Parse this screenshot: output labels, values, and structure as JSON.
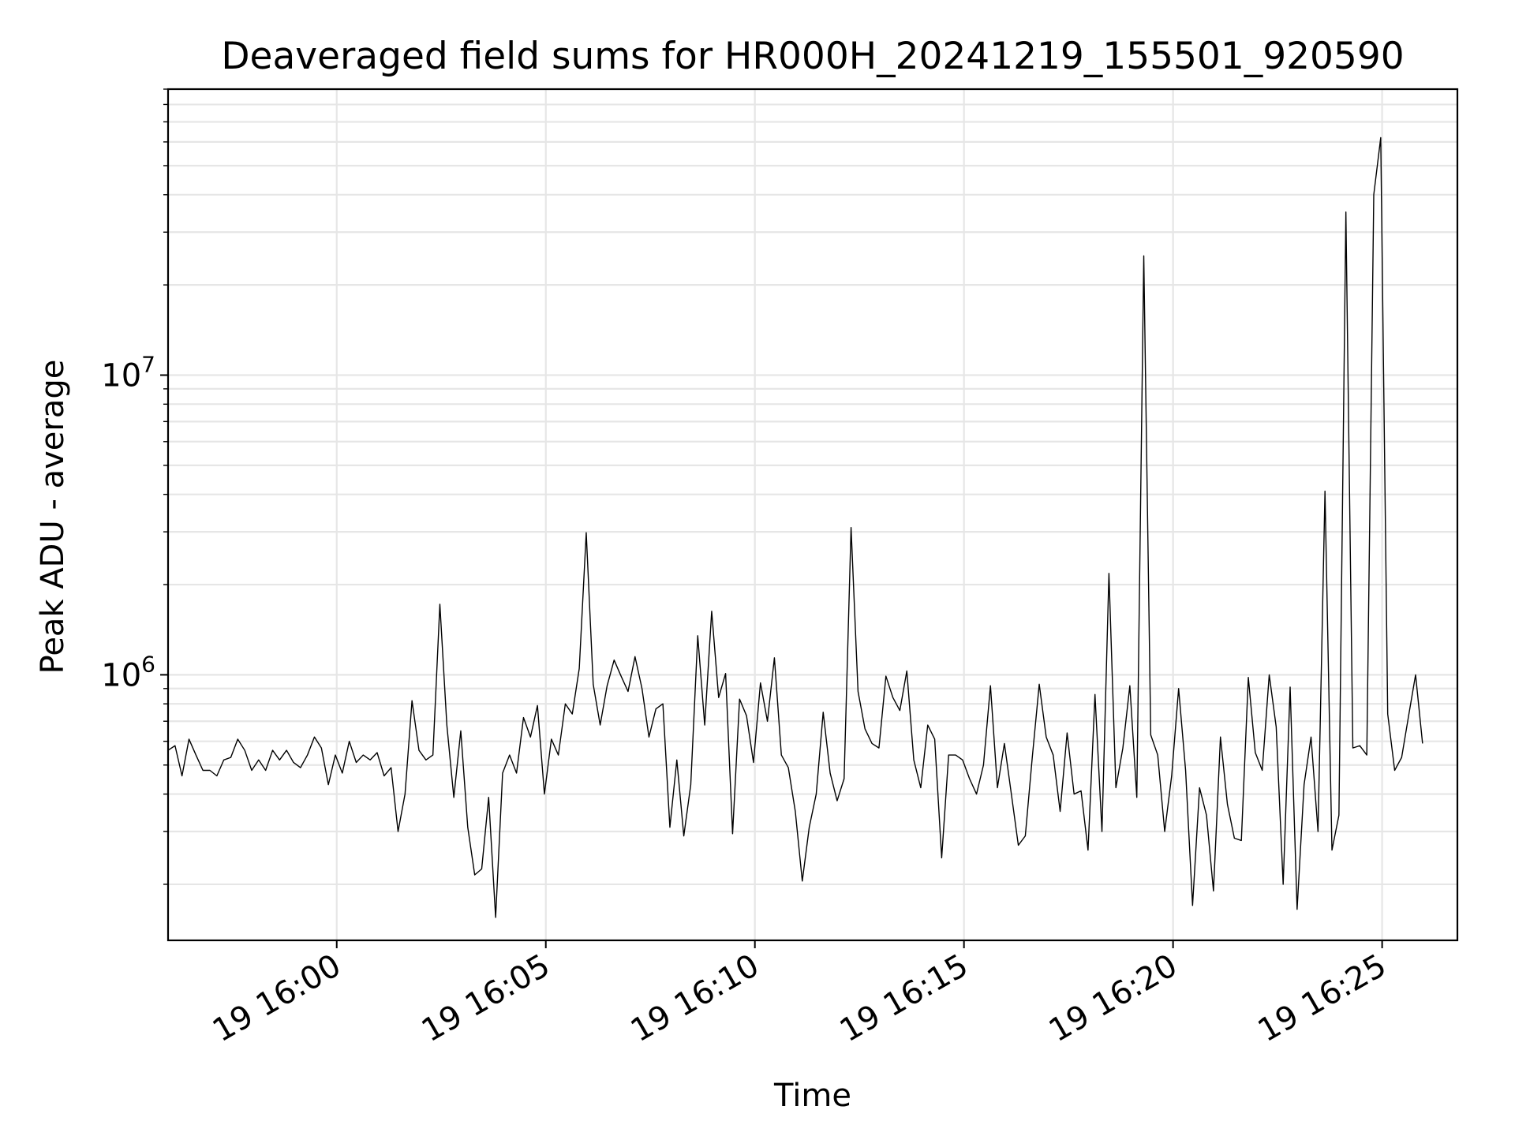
{
  "chart_data": {
    "type": "line",
    "title": "Deaveraged field sums for HR000H_20241219_155501_920590",
    "xlabel": "Time",
    "ylabel": "Peak ADU - average",
    "yscale": "log",
    "grid": true,
    "line_color": "#000000",
    "x_tick_labels": [
      "19 16:00",
      "19 16:05",
      "19 16:10",
      "19 16:15",
      "19 16:20",
      "19 16:25"
    ],
    "y_tick_labels": [
      {
        "base": "10",
        "exp": "6",
        "value": 1000000
      },
      {
        "base": "10",
        "exp": "7",
        "value": 10000000
      }
    ],
    "xlim": [
      "2024-12-19 15:55:58",
      "2024-12-19 16:26:48"
    ],
    "ylim": [
      130000,
      90000000
    ],
    "series": [
      {
        "x_start": "2024-12-19 15:55:58",
        "x_step_seconds": 10,
        "values": [
          560000,
          580000,
          460000,
          610000,
          540000,
          480000,
          480000,
          460000,
          520000,
          530000,
          610000,
          560000,
          480000,
          520000,
          480000,
          560000,
          520000,
          560000,
          510000,
          490000,
          540000,
          620000,
          570000,
          430000,
          540000,
          470000,
          600000,
          510000,
          540000,
          520000,
          550000,
          460000,
          490000,
          300000,
          400000,
          820000,
          560000,
          520000,
          540000,
          1720000,
          680000,
          390000,
          650000,
          310000,
          215000,
          225000,
          390000,
          155000,
          470000,
          540000,
          470000,
          720000,
          620000,
          790000,
          400000,
          610000,
          540000,
          800000,
          740000,
          1050000,
          2980000,
          930000,
          680000,
          920000,
          1120000,
          990000,
          880000,
          1150000,
          900000,
          620000,
          770000,
          800000,
          310000,
          520000,
          290000,
          430000,
          1350000,
          680000,
          1630000,
          840000,
          1010000,
          295000,
          830000,
          730000,
          510000,
          940000,
          700000,
          1140000,
          540000,
          490000,
          350000,
          205000,
          310000,
          400000,
          750000,
          470000,
          380000,
          450000,
          3100000,
          880000,
          660000,
          590000,
          570000,
          990000,
          840000,
          760000,
          1030000,
          520000,
          420000,
          680000,
          610000,
          245000,
          540000,
          540000,
          520000,
          450000,
          400000,
          500000,
          920000,
          420000,
          590000,
          400000,
          270000,
          290000,
          530000,
          930000,
          620000,
          540000,
          350000,
          640000,
          400000,
          410000,
          260000,
          860000,
          300000,
          2180000,
          420000,
          570000,
          920000,
          390000,
          25000000,
          630000,
          540000,
          300000,
          460000,
          900000,
          480000,
          170000,
          420000,
          340000,
          190000,
          620000,
          370000,
          285000,
          280000,
          980000,
          550000,
          480000,
          1000000,
          670000,
          200000,
          910000,
          165000,
          430000,
          620000,
          300000,
          4100000,
          260000,
          340000,
          35000000,
          570000,
          580000,
          540000,
          40000000,
          62000000,
          740000,
          480000,
          530000,
          730000,
          1000000,
          590000
        ]
      }
    ]
  }
}
